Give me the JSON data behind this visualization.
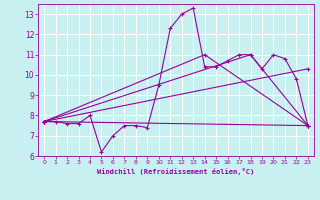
{
  "xlabel": "Windchill (Refroidissement éolien,°C)",
  "bg_color": "#c8f0f0",
  "grid_color": "#ffffff",
  "line_color": "#990099",
  "xlim": [
    -0.5,
    23.5
  ],
  "ylim": [
    6,
    13.5
  ],
  "xticks": [
    0,
    1,
    2,
    3,
    4,
    5,
    6,
    7,
    8,
    9,
    10,
    11,
    12,
    13,
    14,
    15,
    16,
    17,
    18,
    19,
    20,
    21,
    22,
    23
  ],
  "yticks": [
    6,
    7,
    8,
    9,
    10,
    11,
    12,
    13
  ],
  "line1_x": [
    0,
    1,
    2,
    3,
    4,
    5,
    6,
    7,
    8,
    9,
    10,
    11,
    12,
    13,
    14,
    15,
    16,
    17,
    18,
    19,
    20,
    21,
    22,
    23
  ],
  "line1_y": [
    7.7,
    7.7,
    7.6,
    7.6,
    8.0,
    6.2,
    7.0,
    7.5,
    7.5,
    7.4,
    9.5,
    12.3,
    13.0,
    13.3,
    10.4,
    10.4,
    10.7,
    11.0,
    11.0,
    10.3,
    11.0,
    10.8,
    9.8,
    7.5
  ],
  "line2_x": [
    0,
    14,
    23
  ],
  "line2_y": [
    7.7,
    11.0,
    7.5
  ],
  "line3_x": [
    0,
    18,
    23
  ],
  "line3_y": [
    7.7,
    11.0,
    7.5
  ],
  "line4_x": [
    0,
    23
  ],
  "line4_y": [
    7.7,
    7.5
  ],
  "line5_x": [
    0,
    23
  ],
  "line5_y": [
    7.7,
    10.3
  ]
}
